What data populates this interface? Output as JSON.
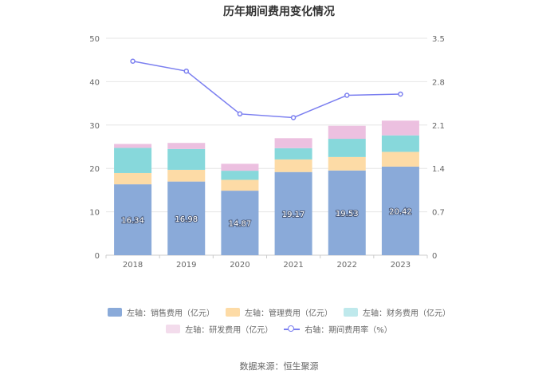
{
  "chart_data": {
    "type": "bar",
    "title": "历年期间费用变化情况",
    "categories": [
      "2018",
      "2019",
      "2020",
      "2021",
      "2022",
      "2023"
    ],
    "series": [
      {
        "name": "左轴：销售费用（亿元）",
        "axis": "left",
        "values": [
          16.34,
          16.98,
          14.87,
          19.17,
          19.53,
          20.42
        ],
        "color": "#8aaad9",
        "show_labels": true
      },
      {
        "name": "左轴：管理费用（亿元）",
        "axis": "left",
        "values": [
          2.6,
          2.7,
          2.5,
          2.9,
          3.1,
          3.4
        ],
        "color": "#fddba6"
      },
      {
        "name": "左轴：财务费用（亿元）",
        "axis": "left",
        "values": [
          5.8,
          4.8,
          2.1,
          2.6,
          4.2,
          3.8
        ],
        "color": "#87d8db"
      },
      {
        "name": "左轴：研发费用（亿元）",
        "axis": "left",
        "values": [
          0.9,
          1.4,
          1.6,
          2.3,
          3.0,
          3.4
        ],
        "color": "#ecc0e0"
      },
      {
        "name": "右轴：期间费用率（%）",
        "axis": "right",
        "type": "line",
        "values": [
          3.13,
          2.97,
          2.28,
          2.22,
          2.58,
          2.6
        ],
        "color": "#7b7ff0"
      }
    ],
    "y_left": {
      "min": 0,
      "max": 50,
      "ticks": [
        "0",
        "10",
        "20",
        "30",
        "40",
        "50"
      ]
    },
    "y_right": {
      "min": 0,
      "max": 3.5,
      "ticks": [
        "0",
        "0.7",
        "1.4",
        "2.1",
        "2.8",
        "3.5"
      ]
    },
    "grid": true,
    "legend_position": "bottom"
  },
  "source": "数据来源：恒生聚源"
}
